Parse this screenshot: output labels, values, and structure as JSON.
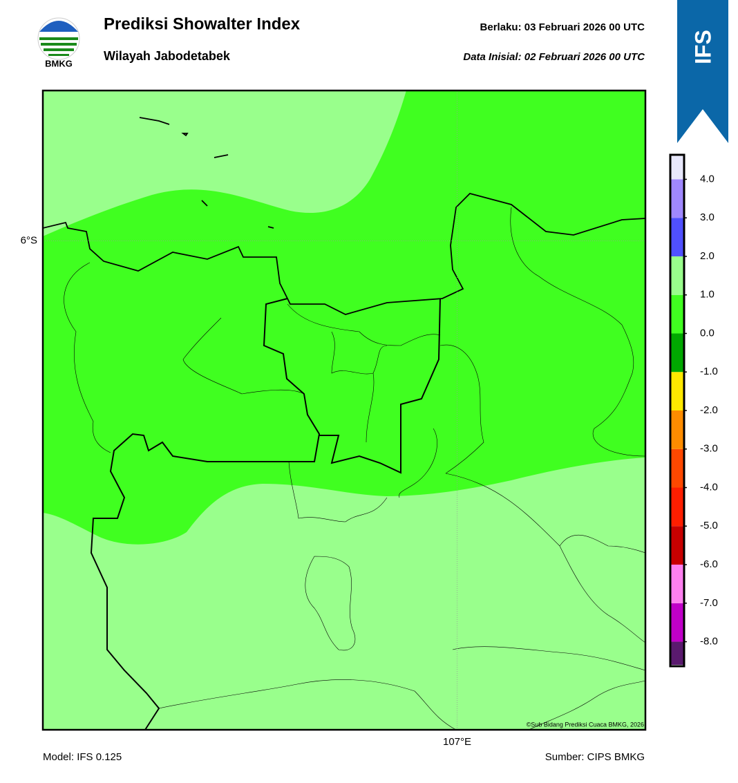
{
  "header": {
    "title": "Prediksi Showalter Index",
    "subtitle": "Wilayah Jabodetabek",
    "valid_time": "Berlaku:  03 Februari 2026 00 UTC",
    "init_time": "Data Inisial:  02 Februari 2026 00 UTC",
    "logo_text": "BMKG",
    "model_badge": "IFS"
  },
  "map": {
    "xlim": [
      105.9,
      107.5
    ],
    "ylim": [
      -7.3,
      -5.6
    ],
    "xticks": [
      {
        "value": 107,
        "label": "107°E"
      }
    ],
    "yticks": [
      {
        "value": -6,
        "label": "6°S"
      }
    ],
    "grid": true,
    "credit": "©Sub Bidang Prediksi Cuaca BMKG, 2026"
  },
  "colorbar": {
    "lim": [
      -8.6,
      4.6
    ],
    "levels": [
      -8.6,
      -8,
      -7,
      -6,
      -5,
      -4,
      -3,
      -2,
      -1,
      0,
      1,
      2,
      3,
      4,
      4.6
    ],
    "colors": [
      "#5a1a6e",
      "#c000c8",
      "#ff80f0",
      "#c80000",
      "#ff1e00",
      "#ff4800",
      "#ff8c00",
      "#ffe800",
      "#00a800",
      "#40ff20",
      "#99ff8c",
      "#5050ff",
      "#a088ff",
      "#e8e8fc"
    ],
    "ticks": [
      {
        "value": 4,
        "label": "4.0"
      },
      {
        "value": 3,
        "label": "3.0"
      },
      {
        "value": 2,
        "label": "2.0"
      },
      {
        "value": 1,
        "label": "1.0"
      },
      {
        "value": 0,
        "label": "0.0"
      },
      {
        "value": -1,
        "label": "-1.0"
      },
      {
        "value": -2,
        "label": "-2.0"
      },
      {
        "value": -3,
        "label": "-3.0"
      },
      {
        "value": -4,
        "label": "-4.0"
      },
      {
        "value": -5,
        "label": "-5.0"
      },
      {
        "value": -6,
        "label": "-6.0"
      },
      {
        "value": -7,
        "label": "-7.0"
      },
      {
        "value": -8,
        "label": "-8.0"
      }
    ]
  },
  "footer": {
    "model": "Model: IFS 0.125",
    "source": "Sumber: CIPS BMKG"
  }
}
